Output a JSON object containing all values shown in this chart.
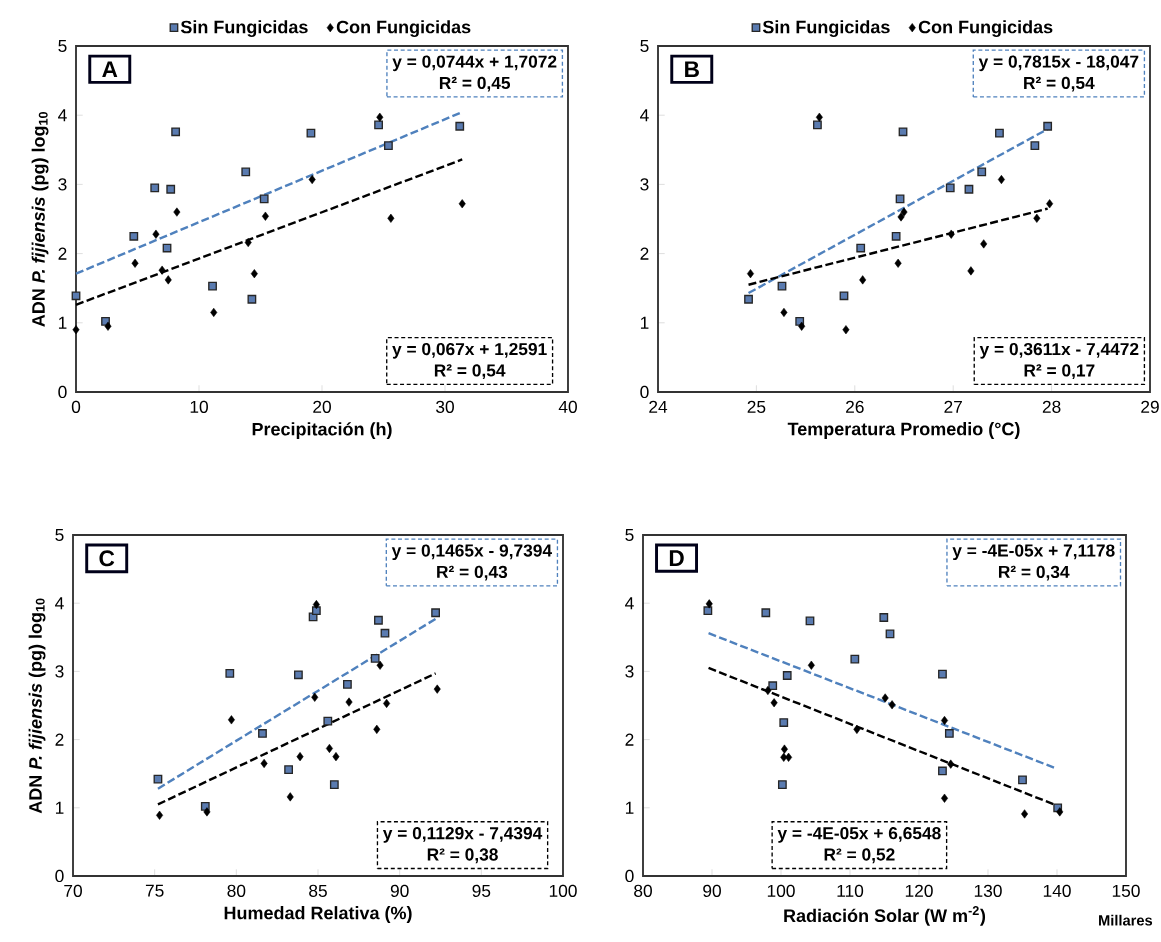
{
  "chart_data": [
    {
      "type": "scatter",
      "title": "A",
      "xlabel": "Precipitación (h)",
      "ylabel": "ADN *P. fijiensis* (pg) log$_{10}$",
      "xlim": [
        0,
        40
      ],
      "xticks": [
        0,
        10,
        20,
        30,
        40
      ],
      "ylim": [
        0,
        5
      ],
      "yticks": [
        0,
        1,
        2,
        3,
        4,
        5
      ],
      "legend": "top",
      "annotations": [
        "y = 0,0744x  + 1,7072",
        "R² = 0,45",
        "y = 0,067x + 1,2591",
        "R² = 0,54"
      ],
      "series": [
        {
          "name": "Sin Fungicidas",
          "marker": "square",
          "color": "#5a7bb0",
          "x": [
            0,
            2.4,
            4.7,
            6.4,
            7.4,
            7.7,
            8.1,
            11.1,
            13.8,
            14.3,
            15.3,
            19.1,
            24.6,
            25.4,
            31.2
          ],
          "values": [
            1.39,
            1.02,
            2.25,
            2.95,
            2.08,
            2.93,
            3.76,
            1.53,
            3.18,
            1.34,
            2.79,
            3.74,
            3.86,
            3.56,
            3.84
          ]
        },
        {
          "name": "Con Fungicidas",
          "marker": "diamond",
          "color": "#000000",
          "x": [
            0,
            2.6,
            4.8,
            6.5,
            7.0,
            7.5,
            8.2,
            11.2,
            14.0,
            14.5,
            15.4,
            19.2,
            24.7,
            25.6,
            31.4
          ],
          "values": [
            0.9,
            0.95,
            1.86,
            2.28,
            1.76,
            1.62,
            2.6,
            1.15,
            2.16,
            1.71,
            2.54,
            3.07,
            3.97,
            2.51,
            2.72
          ]
        },
        {
          "type": "line",
          "line_style": "dashed",
          "marker": "none",
          "color": "#4f81bd",
          "x": [
            0,
            31.2
          ],
          "values": [
            1.71,
            4.03
          ]
        },
        {
          "type": "line",
          "line_style": "dashed",
          "marker": "none",
          "color": "#000000",
          "x": [
            0,
            31.4
          ],
          "values": [
            1.26,
            3.36
          ]
        }
      ]
    },
    {
      "type": "scatter",
      "title": "B",
      "xlabel": "Temperatura Promedio (°C)",
      "xlim": [
        24,
        29
      ],
      "xticks": [
        24,
        25,
        26,
        27,
        28,
        29
      ],
      "ylim": [
        0,
        5
      ],
      "yticks": [
        0,
        1,
        2,
        3,
        4,
        5
      ],
      "legend": "top",
      "annotations": [
        "y = 0,7815x  - 18,047",
        "R² = 0,54",
        "y = 0,3611x  - 7,4472",
        "R² = 0,17"
      ],
      "series": [
        {
          "name": "Sin Fungicidas",
          "marker": "square",
          "color": "#5a7bb0",
          "x": [
            24.92,
            25.26,
            25.44,
            25.62,
            25.89,
            26.06,
            26.42,
            26.46,
            26.49,
            26.97,
            27.16,
            27.29,
            27.47,
            27.83,
            27.96
          ],
          "values": [
            1.34,
            1.53,
            1.02,
            3.86,
            1.39,
            2.08,
            2.25,
            2.79,
            3.76,
            2.95,
            2.93,
            3.18,
            3.74,
            3.56,
            3.84
          ]
        },
        {
          "name": "Con Fungicidas",
          "marker": "diamond",
          "color": "#000000",
          "x": [
            24.94,
            25.28,
            25.46,
            25.64,
            25.91,
            26.08,
            26.44,
            26.47,
            26.5,
            26.98,
            27.18,
            27.31,
            27.49,
            27.85,
            27.98
          ],
          "values": [
            1.71,
            1.15,
            0.95,
            3.97,
            0.9,
            1.62,
            1.86,
            2.53,
            2.6,
            2.28,
            1.75,
            2.14,
            3.07,
            2.51,
            2.72
          ]
        },
        {
          "type": "line",
          "line_style": "dashed",
          "marker": "none",
          "color": "#4f81bd",
          "x": [
            24.92,
            27.96
          ],
          "values": [
            1.43,
            3.8
          ]
        },
        {
          "type": "line",
          "line_style": "dashed",
          "marker": "none",
          "color": "#000000",
          "x": [
            24.92,
            27.96
          ],
          "values": [
            1.55,
            2.65
          ]
        }
      ]
    },
    {
      "type": "scatter",
      "title": "C",
      "xlabel": "Humedad Relativa (%)",
      "ylabel": "ADN *P. fijiensis* (pg) log$_{10}$",
      "xlim": [
        70,
        100
      ],
      "xticks": [
        70,
        75,
        80,
        85,
        90,
        95,
        100
      ],
      "ylim": [
        0,
        5
      ],
      "yticks": [
        0,
        1,
        2,
        3,
        4,
        5
      ],
      "annotations": [
        "y = 0,1465x  - 9,7394",
        "R² = 0,43",
        "y = 0,1129x  - 7,4394",
        "R² = 0,38"
      ],
      "series": [
        {
          "marker": "square",
          "color": "#5a7bb0",
          "x": [
            75.2,
            78.1,
            79.6,
            81.6,
            83.2,
            83.8,
            84.7,
            84.9,
            85.6,
            86.0,
            86.8,
            88.5,
            88.7,
            89.1,
            92.2
          ],
          "values": [
            1.42,
            1.02,
            2.97,
            2.09,
            1.56,
            2.95,
            3.8,
            3.89,
            2.27,
            1.34,
            2.81,
            3.19,
            3.75,
            3.56,
            3.86
          ]
        },
        {
          "marker": "diamond",
          "color": "#000000",
          "x": [
            75.3,
            78.2,
            79.7,
            81.7,
            83.3,
            83.9,
            84.8,
            84.9,
            85.7,
            86.1,
            86.9,
            88.6,
            88.8,
            89.2,
            92.3
          ],
          "values": [
            0.89,
            0.94,
            2.29,
            1.65,
            1.16,
            1.75,
            2.62,
            3.98,
            1.87,
            1.75,
            2.55,
            2.15,
            3.09,
            2.53,
            2.74
          ]
        },
        {
          "type": "line",
          "line_style": "dashed",
          "marker": "none",
          "color": "#4f81bd",
          "x": [
            75.2,
            92.2
          ],
          "values": [
            1.28,
            3.77
          ]
        },
        {
          "type": "line",
          "line_style": "dashed",
          "marker": "none",
          "color": "#000000",
          "x": [
            75.2,
            92.2
          ],
          "values": [
            1.05,
            2.97
          ]
        }
      ]
    },
    {
      "type": "scatter",
      "title": "D",
      "xlabel": "Radiación  Solar (W m$^{-2}$)",
      "xlim": [
        80,
        150
      ],
      "xticks": [
        80,
        90,
        100,
        110,
        120,
        130,
        140,
        150
      ],
      "ylim": [
        0,
        5
      ],
      "yticks": [
        0,
        1,
        2,
        3,
        4,
        5
      ],
      "annotations": [
        "y = -4E-05x  + 7,1178",
        "R² = 0,34",
        "y = -4E-05x  + 6,6548",
        "R² = 0,52",
        "Millares"
      ],
      "series": [
        {
          "marker": "square",
          "color": "#5a7bb0",
          "x": [
            89.4,
            97.8,
            98.8,
            100.4,
            100.2,
            100.9,
            104.2,
            110.7,
            114.9,
            115.8,
            123.4,
            123.4,
            124.4,
            135.0,
            140.1
          ],
          "values": [
            3.89,
            3.86,
            2.79,
            2.25,
            1.34,
            2.94,
            3.74,
            3.18,
            3.79,
            3.55,
            2.96,
            1.54,
            2.09,
            1.41,
            1.0
          ]
        },
        {
          "marker": "diamond",
          "color": "#000000",
          "x": [
            89.6,
            98.1,
            99.0,
            100.5,
            100.4,
            101.1,
            104.4,
            111.0,
            115.1,
            116.1,
            123.7,
            123.7,
            124.6,
            135.3,
            140.4
          ],
          "values": [
            3.99,
            2.72,
            2.54,
            1.86,
            1.74,
            1.74,
            3.09,
            2.15,
            2.61,
            2.51,
            2.28,
            1.14,
            1.64,
            0.91,
            0.94
          ]
        },
        {
          "type": "line",
          "line_style": "dashed",
          "marker": "none",
          "color": "#4f81bd",
          "x": [
            89.5,
            139.8
          ],
          "values": [
            3.56,
            1.58
          ]
        },
        {
          "type": "line",
          "line_style": "dashed",
          "marker": "none",
          "color": "#000000",
          "x": [
            89.5,
            139.8
          ],
          "values": [
            3.05,
            1.04
          ]
        }
      ]
    }
  ]
}
